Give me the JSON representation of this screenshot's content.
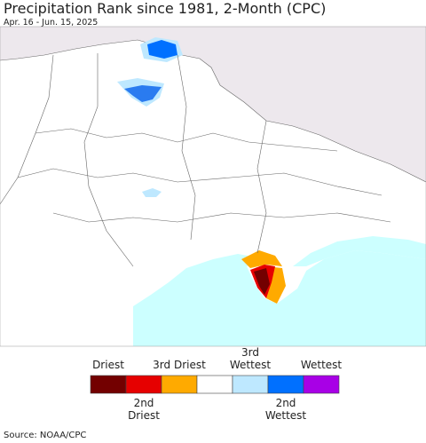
{
  "header": {
    "title": "Precipitation Rank since 1981, 2-Month (CPC)",
    "subtitle": "Apr. 16 - Jun. 15, 2025"
  },
  "legend": {
    "items": [
      {
        "label": "Driest",
        "color": "#730000"
      },
      {
        "label": "2nd Driest",
        "color": "#e60000"
      },
      {
        "label": "3rd Driest",
        "color": "#ffaa00"
      },
      {
        "color": "#ffffff"
      },
      {
        "label": "3rd Wettest",
        "color": "#bee8ff"
      },
      {
        "label": "2nd Wettest",
        "color": "#0070ff"
      },
      {
        "label": "Wettest",
        "color": "#a800e6"
      }
    ]
  },
  "source": "Source: NOAA/CPC"
}
